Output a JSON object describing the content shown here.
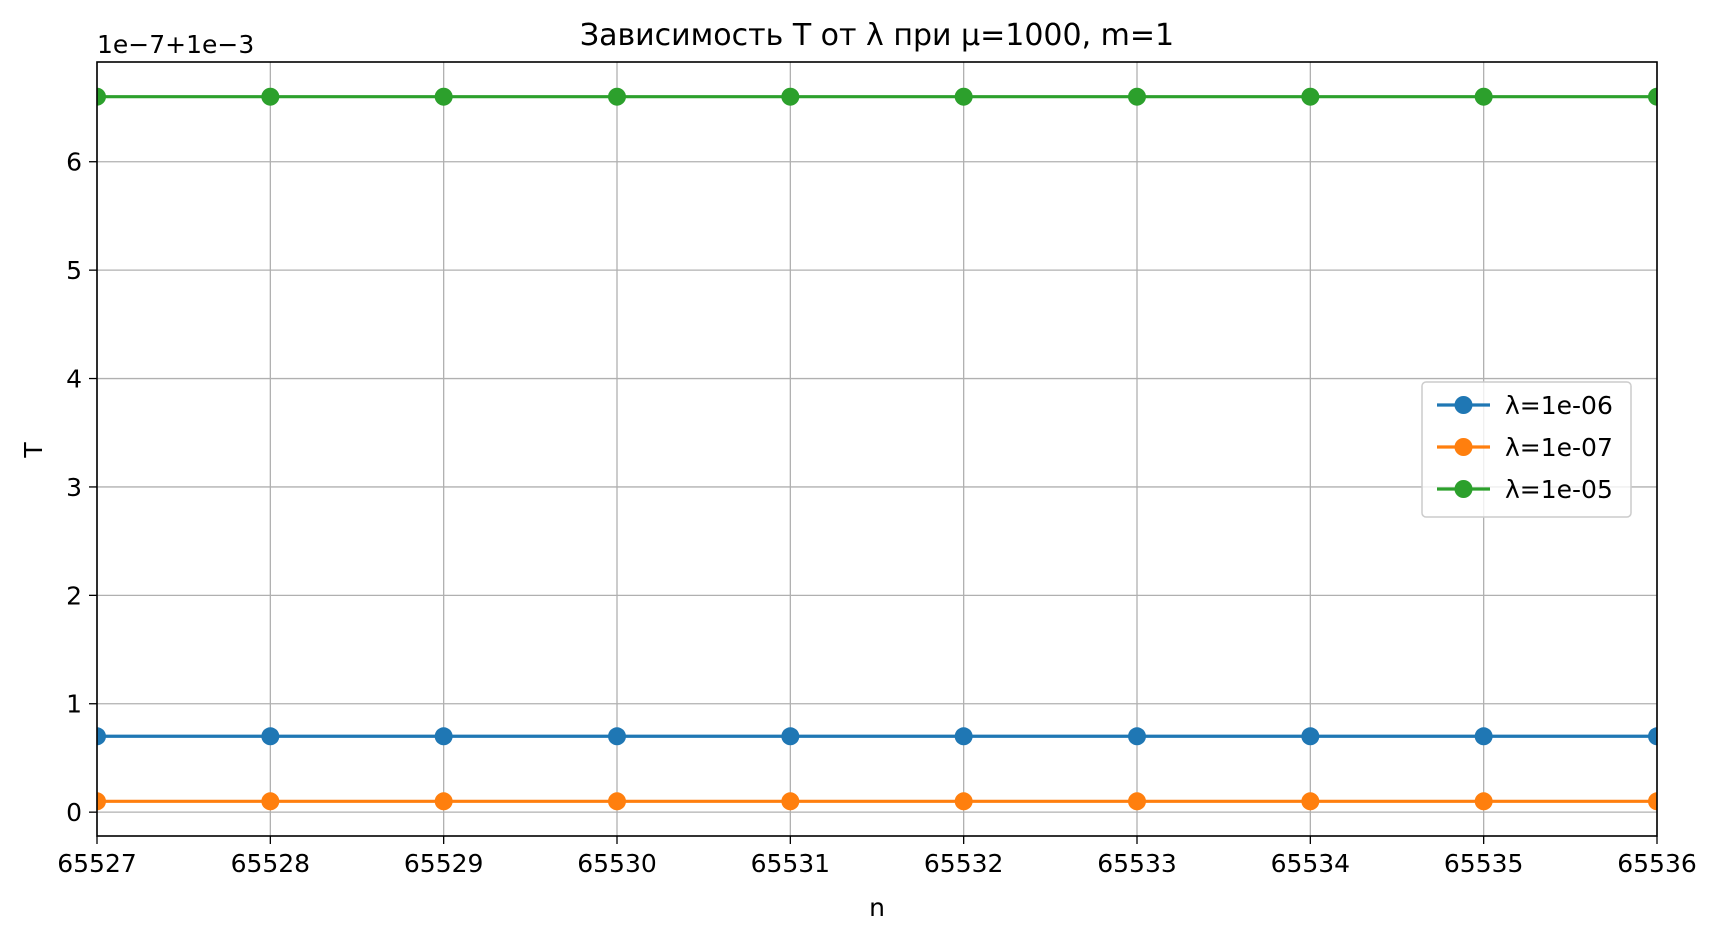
{
  "chart_data": {
    "type": "line",
    "title": "Зависимость T от λ при μ=1000, m=1",
    "xlabel": "n",
    "ylabel": "T",
    "y_offset_label": "1e−7+1e−3",
    "y_offset_value": 0.001,
    "y_scale_factor": 1e-07,
    "x": [
      65527,
      65528,
      65529,
      65530,
      65531,
      65532,
      65533,
      65534,
      65535,
      65536
    ],
    "xlim": [
      65527,
      65536
    ],
    "ylim": [
      -0.22,
      6.92
    ],
    "x_ticks": [
      "65527",
      "65528",
      "65529",
      "65530",
      "65531",
      "65532",
      "65533",
      "65534",
      "65535",
      "65536"
    ],
    "y_ticks": [
      "0",
      "1",
      "2",
      "3",
      "4",
      "5",
      "6"
    ],
    "grid": true,
    "legend_position": "center-right",
    "series": [
      {
        "name": "λ=1e-06",
        "color": "#1f77b4",
        "marker": "circle",
        "values": [
          0.7,
          0.7,
          0.7,
          0.7,
          0.7,
          0.7,
          0.7,
          0.7,
          0.7,
          0.7
        ]
      },
      {
        "name": "λ=1e-07",
        "color": "#ff7f0e",
        "marker": "circle",
        "values": [
          0.1,
          0.1,
          0.1,
          0.1,
          0.1,
          0.1,
          0.1,
          0.1,
          0.1,
          0.1
        ]
      },
      {
        "name": "λ=1e-05",
        "color": "#2ca02c",
        "marker": "circle",
        "values": [
          6.6,
          6.6,
          6.6,
          6.6,
          6.6,
          6.6,
          6.6,
          6.6,
          6.6,
          6.6
        ]
      }
    ]
  }
}
